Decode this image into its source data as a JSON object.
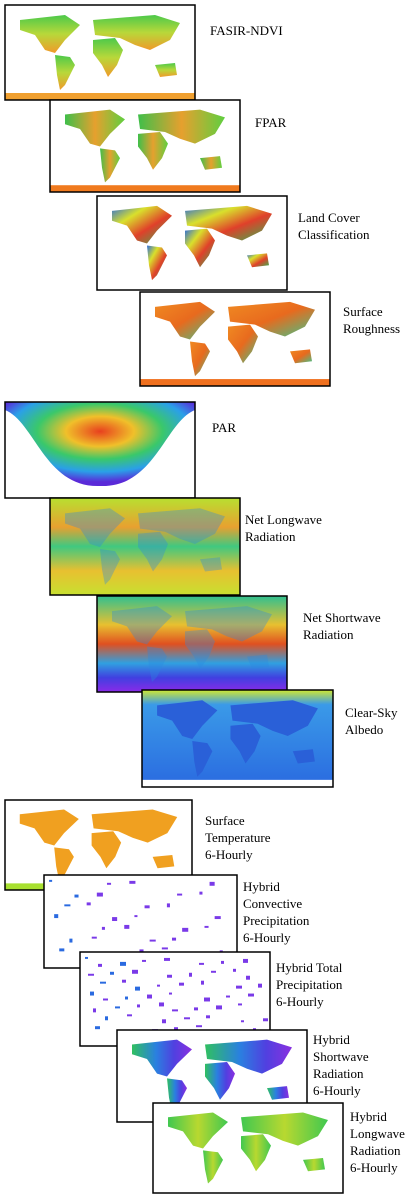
{
  "panels": [
    {
      "label": [
        "FASIR-NDVI"
      ]
    },
    {
      "label": [
        "FPAR"
      ]
    },
    {
      "label": [
        "Land Cover",
        "Classification"
      ]
    },
    {
      "label": [
        "Surface",
        "Roughness"
      ]
    },
    {
      "label": [
        "PAR"
      ]
    },
    {
      "label": [
        "Net Longwave",
        "Radiation"
      ]
    },
    {
      "label": [
        "Net Shortwave",
        "Radiation"
      ]
    },
    {
      "label": [
        "Clear-Sky",
        "Albedo"
      ]
    },
    {
      "label": [
        "Surface",
        "Temperature",
        "6-Hourly"
      ]
    },
    {
      "label": [
        "Hybrid",
        "Convective",
        "Precipitation",
        "6-Hourly"
      ]
    },
    {
      "label": [
        "Hybrid Total",
        "Precipitation",
        "6-Hourly"
      ]
    },
    {
      "label": [
        "Hybrid",
        "Shortwave",
        "Radiation",
        "6-Hourly"
      ]
    },
    {
      "label": [
        "Hybrid",
        "Longwave",
        "Radiation",
        "6-Hourly"
      ]
    }
  ]
}
